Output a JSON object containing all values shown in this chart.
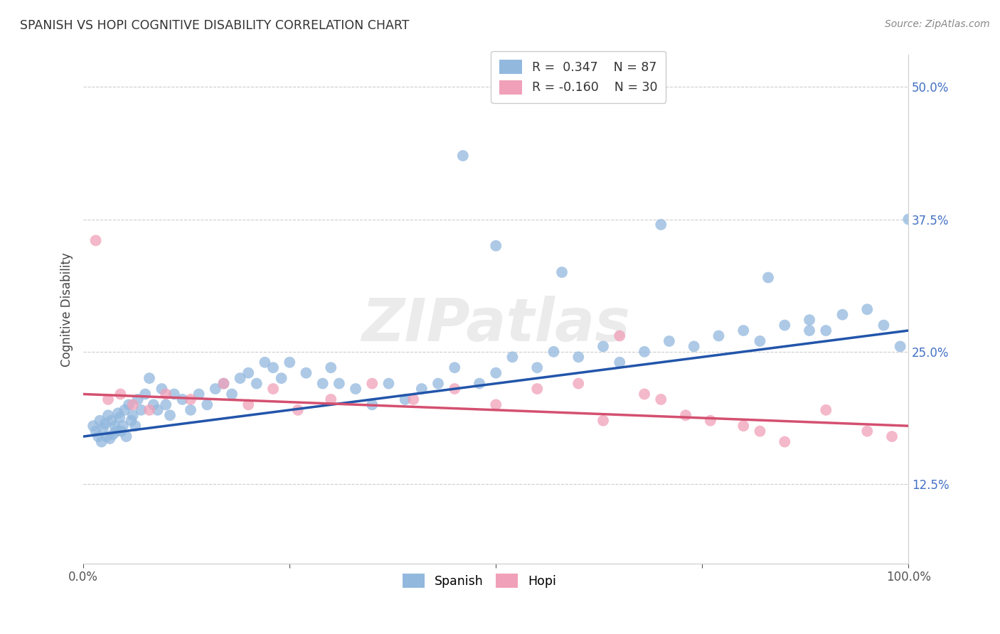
{
  "title": "SPANISH VS HOPI COGNITIVE DISABILITY CORRELATION CHART",
  "source": "Source: ZipAtlas.com",
  "ylabel": "Cognitive Disability",
  "yticks": [
    12.5,
    25.0,
    37.5,
    50.0
  ],
  "ytick_labels": [
    "12.5%",
    "25.0%",
    "37.5%",
    "50.0%"
  ],
  "xtick_labels": [
    "0.0%",
    "100.0%"
  ],
  "xlim": [
    0,
    100
  ],
  "ylim": [
    5,
    53
  ],
  "legend_R1": "R =  0.347",
  "legend_N1": "N = 87",
  "legend_R2": "R = -0.160",
  "legend_N2": "N = 30",
  "spanish_color": "#92b8de",
  "hopi_color": "#f0a0b8",
  "trend_blue": "#2255aa",
  "trend_pink": "#d45070",
  "background": "#ffffff",
  "label_color": "#4472c4",
  "spanish_x": [
    1.2,
    1.5,
    1.8,
    2.0,
    2.2,
    2.4,
    2.6,
    2.8,
    3.0,
    3.2,
    3.4,
    3.6,
    3.8,
    4.0,
    4.2,
    4.4,
    4.6,
    4.8,
    5.0,
    5.2,
    5.5,
    5.8,
    6.0,
    6.3,
    6.6,
    7.0,
    7.5,
    8.0,
    8.5,
    9.0,
    9.5,
    10.0,
    10.5,
    11.0,
    12.0,
    13.0,
    14.0,
    15.0,
    16.0,
    17.0,
    18.0,
    19.0,
    20.0,
    21.0,
    22.0,
    23.0,
    24.0,
    25.0,
    27.0,
    29.0,
    30.0,
    31.0,
    33.0,
    35.0,
    37.0,
    39.0,
    41.0,
    43.0,
    45.0,
    48.0,
    50.0,
    52.0,
    55.0,
    57.0,
    60.0,
    63.0,
    65.0,
    68.0,
    71.0,
    74.0,
    77.0,
    80.0,
    82.0,
    85.0,
    88.0,
    90.0,
    92.0,
    95.0,
    97.0,
    99.0,
    46.0,
    50.0,
    58.0,
    70.0,
    83.0,
    88.0,
    100.0
  ],
  "spanish_y": [
    18.0,
    17.5,
    17.0,
    18.5,
    16.5,
    17.8,
    18.2,
    17.0,
    19.0,
    16.8,
    18.5,
    17.2,
    18.0,
    17.5,
    19.2,
    18.8,
    17.5,
    18.0,
    19.5,
    17.0,
    20.0,
    18.5,
    19.0,
    18.0,
    20.5,
    19.5,
    21.0,
    22.5,
    20.0,
    19.5,
    21.5,
    20.0,
    19.0,
    21.0,
    20.5,
    19.5,
    21.0,
    20.0,
    21.5,
    22.0,
    21.0,
    22.5,
    23.0,
    22.0,
    24.0,
    23.5,
    22.5,
    24.0,
    23.0,
    22.0,
    23.5,
    22.0,
    21.5,
    20.0,
    22.0,
    20.5,
    21.5,
    22.0,
    23.5,
    22.0,
    23.0,
    24.5,
    23.5,
    25.0,
    24.5,
    25.5,
    24.0,
    25.0,
    26.0,
    25.5,
    26.5,
    27.0,
    26.0,
    27.5,
    28.0,
    27.0,
    28.5,
    29.0,
    27.5,
    25.5,
    43.5,
    35.0,
    32.5,
    37.0,
    32.0,
    27.0,
    37.5
  ],
  "hopi_x": [
    1.5,
    3.0,
    4.5,
    6.0,
    8.0,
    10.0,
    13.0,
    17.0,
    20.0,
    23.0,
    26.0,
    30.0,
    35.0,
    40.0,
    45.0,
    50.0,
    55.0,
    60.0,
    63.0,
    65.0,
    68.0,
    70.0,
    73.0,
    76.0,
    80.0,
    82.0,
    85.0,
    90.0,
    95.0,
    98.0
  ],
  "hopi_y": [
    35.5,
    20.5,
    21.0,
    20.0,
    19.5,
    21.0,
    20.5,
    22.0,
    20.0,
    21.5,
    19.5,
    20.5,
    22.0,
    20.5,
    21.5,
    20.0,
    21.5,
    22.0,
    18.5,
    26.5,
    21.0,
    20.5,
    19.0,
    18.5,
    18.0,
    17.5,
    16.5,
    19.5,
    17.5,
    17.0
  ],
  "bottom_legend_labels": [
    "Spanish",
    "Hopi"
  ]
}
